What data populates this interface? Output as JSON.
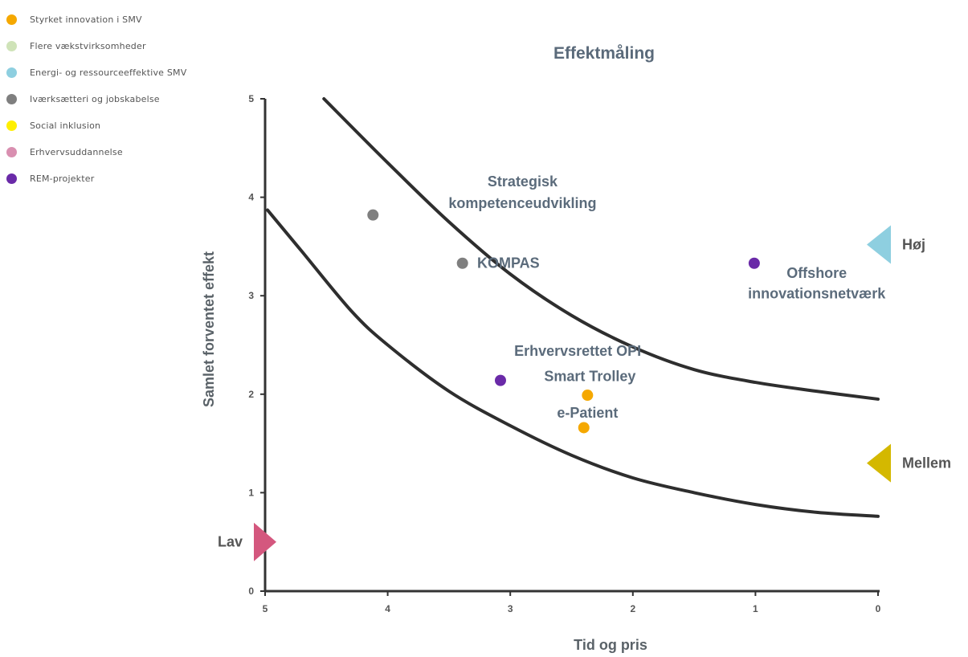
{
  "legend": [
    {
      "label": "Styrket innovation i SMV",
      "color": "#f5a800"
    },
    {
      "label": "Flere vækstvirksomheder",
      "color": "#cfe3b8"
    },
    {
      "label": "Energi- og ressourceeffektive SMV",
      "color": "#8ecfe0"
    },
    {
      "label": "Iværksætteri og jobskabelse",
      "color": "#7f7f7f"
    },
    {
      "label": "Social inklusion",
      "color": "#ffef00"
    },
    {
      "label": "Erhvervsuddannelse",
      "color": "#d98fb0"
    },
    {
      "label": "REM-projekter",
      "color": "#6a2aa8"
    }
  ],
  "chart_data": {
    "type": "scatter",
    "title": "Effektmåling",
    "xlabel": "Tid og pris",
    "ylabel": "Samlet forventet effekt",
    "xlim": [
      5,
      0
    ],
    "ylim": [
      0,
      5
    ],
    "x_reversed": true,
    "xticks": [
      "5",
      "4",
      "3",
      "2",
      "1",
      "0"
    ],
    "yticks": [
      "0",
      "1",
      "2",
      "3",
      "4",
      "5"
    ],
    "points": [
      {
        "x": 4.12,
        "y": 3.82,
        "color": "#7f7f7f",
        "category": "Iværksætteri og jobskabelse"
      },
      {
        "x": 3.39,
        "y": 3.33,
        "color": "#7f7f7f",
        "category": "Iværksætteri og jobskabelse"
      },
      {
        "x": 3.08,
        "y": 2.14,
        "color": "#6a2aa8",
        "category": "REM-projekter"
      },
      {
        "x": 2.37,
        "y": 1.99,
        "color": "#f5a800",
        "category": "Styrket innovation i SMV"
      },
      {
        "x": 2.4,
        "y": 1.66,
        "color": "#f5a800",
        "category": "Styrket innovation i SMV"
      },
      {
        "x": 1.01,
        "y": 3.33,
        "color": "#6a2aa8",
        "category": "REM-projekter"
      }
    ],
    "annotations": [
      {
        "lines": [
          "Strategisk"
        ],
        "x": 2.9,
        "y": 4.16
      },
      {
        "lines": [
          "kompetenceudvikling"
        ],
        "x": 2.9,
        "y": 3.94
      },
      {
        "lines": [
          "KOMPAS"
        ],
        "x": 3.27,
        "y": 3.33
      },
      {
        "lines": [
          "Erhvervsrettet OPI"
        ],
        "x": 2.45,
        "y": 2.44
      },
      {
        "lines": [
          "Smart Trolley"
        ],
        "x": 2.35,
        "y": 2.18
      },
      {
        "lines": [
          "e-Patient"
        ],
        "x": 2.37,
        "y": 1.81
      },
      {
        "lines": [
          "Offshore"
        ],
        "x": 0.5,
        "y": 3.23
      },
      {
        "lines": [
          "innovationsnetværk"
        ],
        "x": 0.5,
        "y": 3.02
      }
    ],
    "curves": [
      {
        "points": [
          [
            4.52,
            5.0
          ],
          [
            4.0,
            4.35
          ],
          [
            3.5,
            3.75
          ],
          [
            3.0,
            3.22
          ],
          [
            2.5,
            2.8
          ],
          [
            2.0,
            2.48
          ],
          [
            1.5,
            2.25
          ],
          [
            1.0,
            2.12
          ],
          [
            0.5,
            2.03
          ],
          [
            0.0,
            1.95
          ]
        ]
      },
      {
        "points": [
          [
            4.98,
            3.87
          ],
          [
            4.7,
            3.45
          ],
          [
            4.3,
            2.85
          ],
          [
            4.0,
            2.5
          ],
          [
            3.5,
            2.03
          ],
          [
            3.0,
            1.68
          ],
          [
            2.5,
            1.38
          ],
          [
            2.0,
            1.15
          ],
          [
            1.5,
            1.0
          ],
          [
            1.0,
            0.88
          ],
          [
            0.5,
            0.8
          ],
          [
            0.0,
            0.76
          ]
        ]
      }
    ],
    "levels": [
      {
        "label": "Høj",
        "y": 3.52,
        "color": "#8ecfe0",
        "side": "right"
      },
      {
        "label": "Mellem",
        "y": 1.3,
        "color": "#d4b800",
        "side": "right"
      },
      {
        "label": "Lav",
        "y": 0.5,
        "color": "#d4577e",
        "side": "left"
      }
    ]
  }
}
